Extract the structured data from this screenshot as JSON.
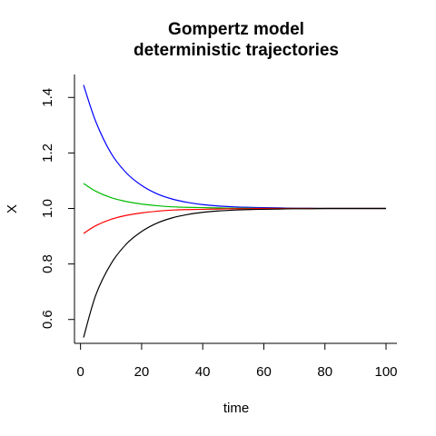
{
  "chart_data": {
    "type": "line",
    "title": [
      "Gompertz model",
      "deterministic trajectories"
    ],
    "xlabel": "time",
    "ylabel": "X",
    "xlim": [
      1,
      100
    ],
    "ylim": [
      0.55,
      1.45
    ],
    "x_ticks": [
      0,
      20,
      40,
      60,
      80,
      100
    ],
    "y_ticks": [
      0.6,
      0.8,
      1.0,
      1.2,
      1.4
    ],
    "x_tick_labels": [
      "0",
      "20",
      "40",
      "60",
      "80",
      "100"
    ],
    "y_tick_labels": [
      "0.6",
      "0.8",
      "1.0",
      "1.2",
      "1.4"
    ],
    "grid": false,
    "legend": "none",
    "x": [
      1,
      5,
      10,
      15,
      20,
      25,
      30,
      35,
      40,
      45,
      50,
      55,
      60,
      65,
      70,
      75,
      80,
      85,
      90,
      95,
      100
    ],
    "series": [
      {
        "color": "#0000ff",
        "values": [
          1.445,
          1.313,
          1.199,
          1.128,
          1.083,
          1.053,
          1.034,
          1.022,
          1.014,
          1.009,
          1.006,
          1.004,
          1.003,
          1.002,
          1.001,
          1.001,
          1.0,
          1.0,
          1.0,
          1.0,
          1.0
        ]
      },
      {
        "color": "#00bb00",
        "values": [
          1.09,
          1.062,
          1.039,
          1.025,
          1.016,
          1.01,
          1.006,
          1.004,
          1.003,
          1.002,
          1.001,
          1.001,
          1.0,
          1.0,
          1.0,
          1.0,
          1.0,
          1.0,
          1.0,
          1.0,
          1.0
        ]
      },
      {
        "color": "#ff0000",
        "values": [
          0.91,
          0.938,
          0.961,
          0.975,
          0.984,
          0.99,
          0.994,
          0.996,
          0.997,
          0.998,
          0.999,
          0.999,
          1.0,
          1.0,
          1.0,
          1.0,
          1.0,
          1.0,
          1.0,
          1.0,
          1.0
        ]
      },
      {
        "color": "#000000",
        "values": [
          0.535,
          0.688,
          0.801,
          0.872,
          0.917,
          0.947,
          0.966,
          0.978,
          0.986,
          0.991,
          0.994,
          0.996,
          0.997,
          0.998,
          0.999,
          0.999,
          1.0,
          1.0,
          1.0,
          1.0,
          1.0
        ]
      }
    ]
  }
}
